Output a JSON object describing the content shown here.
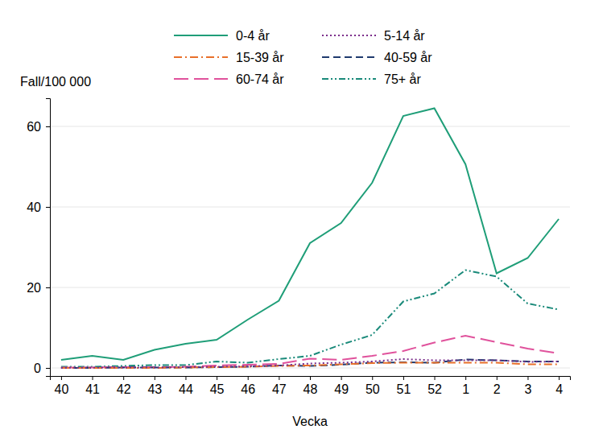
{
  "chart_data": {
    "type": "line",
    "y_label": "Fall/100 000",
    "x_label": "Vecka",
    "categories": [
      "40",
      "41",
      "42",
      "43",
      "44",
      "45",
      "46",
      "47",
      "48",
      "49",
      "50",
      "51",
      "52",
      "1",
      "2",
      "3",
      "4"
    ],
    "series": [
      {
        "name": "0-4 år",
        "color": "#1f9e78",
        "line_style": "solid",
        "values": [
          2,
          3,
          2,
          4.5,
          6,
          7,
          12,
          16.7,
          31,
          36,
          46,
          62.6,
          64.5,
          50.6,
          23.5,
          27.3,
          37
        ]
      },
      {
        "name": "5-14 år",
        "color": "#7b2d8b",
        "line_style": "dotted",
        "values": [
          0,
          0.1,
          0.1,
          0.1,
          0.2,
          0.3,
          0.4,
          0.6,
          1.1,
          1.3,
          1.6,
          2.2,
          1.9,
          1.9,
          1.9,
          1.5,
          1.6
        ]
      },
      {
        "name": "15-39 år",
        "color": "#e8702a",
        "line_style": "dashdot",
        "values": [
          0,
          0,
          0,
          0,
          0.1,
          0.2,
          0.3,
          0.5,
          0.6,
          0.9,
          1.2,
          1.3,
          1.3,
          1.3,
          1.3,
          0.9,
          0.9
        ]
      },
      {
        "name": "40-59 år",
        "color": "#1f3a6e",
        "line_style": "dashed",
        "values": [
          0,
          0,
          0.1,
          0.1,
          0.1,
          0.2,
          0.3,
          0.6,
          0.5,
          0.8,
          1.3,
          1.4,
          1.3,
          2.1,
          1.9,
          1.6,
          1.6
        ]
      },
      {
        "name": "60-74 år",
        "color": "#e0529c",
        "line_style": "longdash",
        "values": [
          0.1,
          0.1,
          0.2,
          0.2,
          0.3,
          0.6,
          0.8,
          1,
          2.3,
          2,
          3,
          4.2,
          6.3,
          8,
          6.4,
          4.8,
          3.6
        ]
      },
      {
        "name": "75+ år",
        "color": "#1a8a7a",
        "line_style": "dashdotdot",
        "values": [
          0.3,
          0.3,
          0.5,
          0.7,
          0.7,
          1.6,
          1.3,
          2.2,
          3,
          5.8,
          8.2,
          16.5,
          18.5,
          24.3,
          22.7,
          16,
          14.5
        ]
      }
    ],
    "ylim": [
      -2,
      67
    ],
    "yticks": [
      0,
      20,
      40,
      60
    ],
    "grid": true,
    "legend": "top"
  }
}
